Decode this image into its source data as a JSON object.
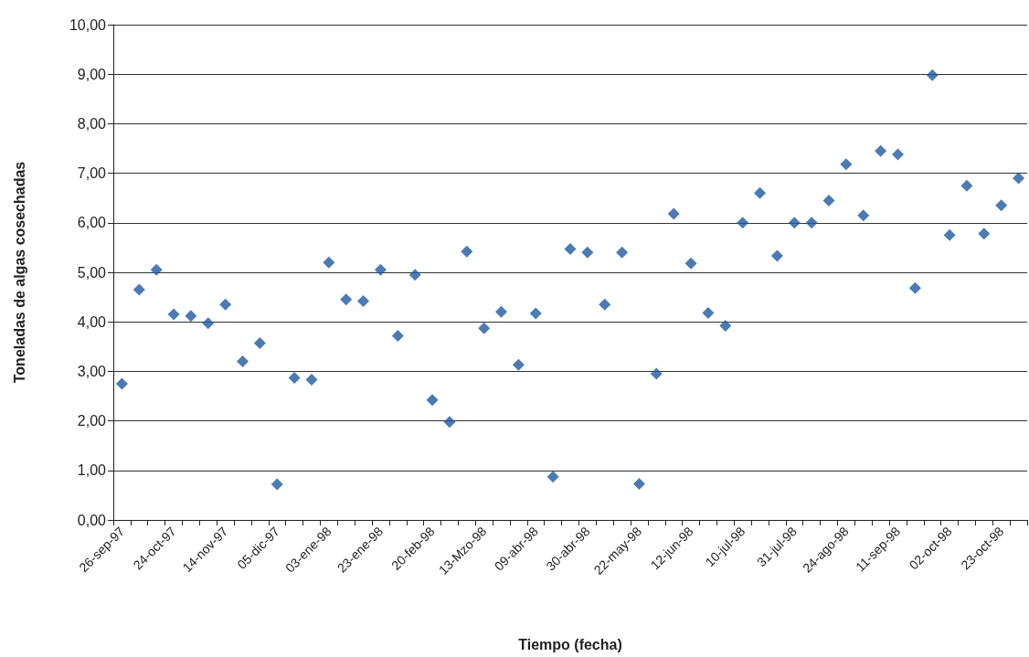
{
  "chart_data": {
    "type": "scatter",
    "xlabel": "Tiempo (fecha)",
    "ylabel": "Toneladas de algas cosechadas",
    "categories": [
      "26-sep-97",
      null,
      null,
      "24-oct-97",
      null,
      null,
      "14-nov-97",
      null,
      null,
      "05-dic-97",
      null,
      null,
      "03-ene-98",
      null,
      null,
      "23-ene-98",
      null,
      null,
      "20-feb-98",
      null,
      null,
      "13-Mzo-98",
      null,
      null,
      "09-abr-98",
      null,
      null,
      "30-abr-98",
      null,
      null,
      "22-may-98",
      null,
      null,
      "12-jun-98",
      null,
      null,
      "10-jul-98",
      null,
      null,
      "31-jul-98",
      null,
      null,
      "24-ago-98",
      null,
      null,
      "11-sep-98",
      null,
      null,
      "02-oct-98",
      null,
      null,
      "23-oct-98",
      null
    ],
    "series": [
      {
        "color": "#1f5aa0",
        "values": [
          2.75,
          4.65,
          5.05,
          4.15,
          4.12,
          3.97,
          4.35,
          3.2,
          3.57,
          0.72,
          2.87,
          2.83,
          5.2,
          4.45,
          4.42,
          5.05,
          3.72,
          4.95,
          2.42,
          1.98,
          5.42,
          3.87,
          4.2,
          3.13,
          4.17,
          0.87,
          5.47,
          5.4,
          4.35,
          5.4,
          0.73,
          2.95,
          6.18,
          5.18,
          4.18,
          3.92,
          6.0,
          6.6,
          5.33,
          6.0,
          6.0,
          6.45,
          7.18,
          6.15,
          7.45,
          7.38,
          4.68,
          8.98,
          5.75,
          6.75,
          5.78,
          6.35,
          6.9
        ]
      }
    ],
    "ylim": [
      0,
      10
    ],
    "yticks": [
      {
        "value": 0,
        "label": "0,00"
      },
      {
        "value": 1,
        "label": "1,00"
      },
      {
        "value": 2,
        "label": "2,00"
      },
      {
        "value": 3,
        "label": "3,00"
      },
      {
        "value": 4,
        "label": "4,00"
      },
      {
        "value": 5,
        "label": "5,00"
      },
      {
        "value": 6,
        "label": "6,00"
      },
      {
        "value": 7,
        "label": "7,00"
      },
      {
        "value": 8,
        "label": "8,00"
      },
      {
        "value": 9,
        "label": "9,00"
      },
      {
        "value": 10,
        "label": "10,00"
      }
    ],
    "grid": "y",
    "marker": "diamond"
  }
}
